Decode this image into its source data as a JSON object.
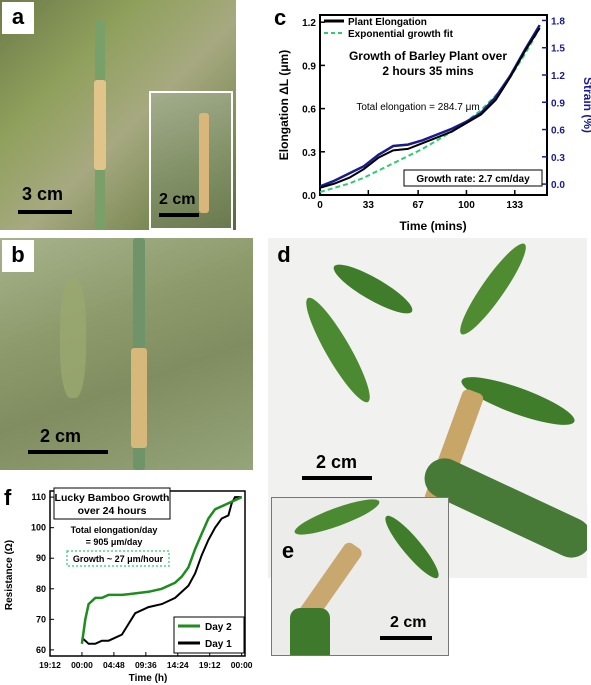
{
  "panels": {
    "a": {
      "label": "a",
      "scale": "3 cm",
      "inset_scale": "2 cm"
    },
    "b": {
      "label": "b",
      "scale": "2 cm"
    },
    "d": {
      "label": "d",
      "scale": "2 cm"
    },
    "e": {
      "label": "e",
      "scale": "2 cm"
    },
    "c": {
      "label": "c"
    },
    "f": {
      "label": "f"
    }
  },
  "colors": {
    "black": "#000000",
    "green": "#1e8c1e",
    "navy": "#1a1a8c",
    "dash": "#2ecc71"
  },
  "chart_data": [
    {
      "id": "c",
      "type": "line",
      "title": "Growth of Barley Plant over 2 hours 35 mins",
      "title_lines": [
        "Growth of Barley Plant over",
        "2 hours 35 mins"
      ],
      "xlabel": "Time (mins)",
      "ylabel": "Elongation ΔL (μm)",
      "y2label": "Strain (%)",
      "xlim": [
        0,
        155
      ],
      "ylim": [
        0,
        1.25
      ],
      "y2lim": [
        -0.12,
        1.86
      ],
      "xticks": [
        "0",
        "33",
        "67",
        "100",
        "133"
      ],
      "yticks": [
        "0.0",
        "0.3",
        "0.6",
        "0.9",
        "1.2"
      ],
      "y2ticks": [
        "0.0",
        "0.3",
        "0.6",
        "0.9",
        "1.2",
        "1.5",
        "1.8"
      ],
      "legend": [
        "Plant Elongation",
        "Exponential growth fit"
      ],
      "annotations": [
        "Total elongation = 284.7 μm",
        "Growth rate: 2.7 cm/day"
      ],
      "series": [
        {
          "name": "Plant Elongation",
          "x": [
            0,
            10,
            20,
            30,
            40,
            50,
            60,
            70,
            80,
            90,
            100,
            110,
            120,
            130,
            140,
            150
          ],
          "values": [
            0.05,
            0.08,
            0.12,
            0.18,
            0.26,
            0.31,
            0.32,
            0.36,
            0.4,
            0.44,
            0.5,
            0.56,
            0.66,
            0.82,
            1.0,
            1.16
          ]
        },
        {
          "name": "strain",
          "x": [
            0,
            10,
            20,
            30,
            40,
            50,
            60,
            70,
            80,
            90,
            100,
            110,
            120,
            130,
            140,
            150
          ],
          "values": [
            0.06,
            0.1,
            0.15,
            0.2,
            0.28,
            0.34,
            0.35,
            0.38,
            0.42,
            0.46,
            0.51,
            0.57,
            0.68,
            0.83,
            1.01,
            1.18
          ]
        },
        {
          "name": "Exponential growth fit",
          "x": [
            0,
            10,
            20,
            30,
            40,
            50,
            60,
            70,
            80,
            90,
            100,
            110,
            120,
            130,
            140,
            150
          ],
          "values": [
            0.02,
            0.05,
            0.08,
            0.12,
            0.17,
            0.22,
            0.27,
            0.32,
            0.38,
            0.44,
            0.51,
            0.59,
            0.69,
            0.82,
            0.98,
            1.16
          ]
        }
      ]
    },
    {
      "id": "f",
      "type": "line",
      "title": "Lucky Bamboo Growth over 24 hours",
      "title_lines": [
        "Lucky Bamboo Growth",
        "over 24 hours"
      ],
      "xlabel": "Time (h)",
      "ylabel": "Resistance (Ω)",
      "xticks": [
        "19:12",
        "00:00",
        "04:48",
        "09:36",
        "14:24",
        "19:12",
        "00:00"
      ],
      "yticks": [
        "60",
        "70",
        "80",
        "90",
        "100",
        "110"
      ],
      "xlim": [
        -4.8,
        24.5
      ],
      "ylim": [
        58,
        112
      ],
      "legend": [
        "Day 2",
        "Day 1"
      ],
      "annotations": [
        "Total elongation/day",
        "= 905 μm/day",
        "Growth ~ 27 μm/hour"
      ],
      "series": [
        {
          "name": "Day 2",
          "x": [
            0,
            0.5,
            1,
            2,
            3,
            4,
            6,
            8,
            10,
            12,
            14,
            15,
            16,
            17,
            18,
            19,
            20,
            21,
            22,
            23,
            24
          ],
          "values": [
            62,
            70,
            75,
            77,
            77,
            78,
            78,
            78.5,
            79,
            80,
            82,
            84,
            87,
            93,
            98,
            103,
            106,
            107,
            108,
            109,
            110
          ]
        },
        {
          "name": "Day 1",
          "x": [
            0,
            0.5,
            1,
            2,
            3,
            4,
            5,
            6,
            8,
            10,
            12,
            14,
            16,
            17,
            18,
            19,
            20,
            21,
            22,
            22.5,
            23,
            24
          ],
          "values": [
            64,
            63,
            62,
            62,
            63,
            63,
            64,
            65,
            72,
            74,
            75,
            77,
            81,
            85,
            91,
            96,
            100,
            103,
            104,
            108,
            110,
            110
          ]
        }
      ]
    }
  ]
}
